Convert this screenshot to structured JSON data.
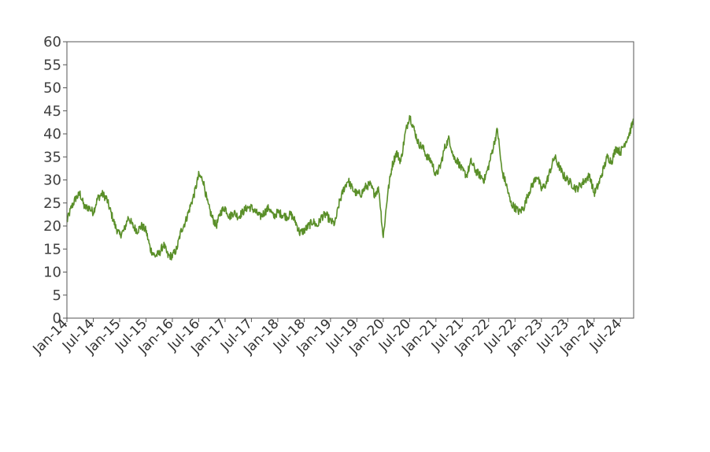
{
  "chart_data": {
    "type": "line",
    "title": "",
    "xlabel": "",
    "ylabel": "",
    "ylim": [
      0,
      60
    ],
    "yticks": [
      0,
      5,
      10,
      15,
      20,
      25,
      30,
      35,
      40,
      45,
      50,
      55,
      60
    ],
    "x_range": [
      "2014-01",
      "2024-10"
    ],
    "xtick_labels": [
      "Jan-14",
      "Jul-14",
      "Jan-15",
      "Jul-15",
      "Jan-16",
      "Jul-16",
      "Jan-17",
      "Jul-17",
      "Jan-18",
      "Jul-18",
      "Jan-19",
      "Jul-19",
      "Jan-20",
      "Jul-20",
      "Jan-21",
      "Jul-21",
      "Jan-22",
      "Jul-22",
      "Jan-23",
      "Jul-23",
      "Jan-24",
      "Jul-24"
    ],
    "grid": false,
    "line_color": "#5a8f29",
    "series": [
      {
        "x": [
          "2014-01",
          "2014-02",
          "2014-03",
          "2014-04",
          "2014-05",
          "2014-06",
          "2014-07",
          "2014-08",
          "2014-09",
          "2014-10",
          "2014-11",
          "2014-12",
          "2015-01",
          "2015-02",
          "2015-03",
          "2015-04",
          "2015-05",
          "2015-06",
          "2015-07",
          "2015-08",
          "2015-09",
          "2015-10",
          "2015-11",
          "2015-12",
          "2016-01",
          "2016-02",
          "2016-03",
          "2016-04",
          "2016-05",
          "2016-06",
          "2016-07",
          "2016-08",
          "2016-09",
          "2016-10",
          "2016-11",
          "2016-12",
          "2017-01",
          "2017-02",
          "2017-03",
          "2017-04",
          "2017-05",
          "2017-06",
          "2017-07",
          "2017-08",
          "2017-09",
          "2017-10",
          "2017-11",
          "2017-12",
          "2018-01",
          "2018-02",
          "2018-03",
          "2018-04",
          "2018-05",
          "2018-06",
          "2018-07",
          "2018-08",
          "2018-09",
          "2018-10",
          "2018-11",
          "2018-12",
          "2019-01",
          "2019-02",
          "2019-03",
          "2019-04",
          "2019-05",
          "2019-06",
          "2019-07",
          "2019-08",
          "2019-09",
          "2019-10",
          "2019-11",
          "2019-12",
          "2020-01",
          "2020-02",
          "2020-03",
          "2020-04",
          "2020-05",
          "2020-06",
          "2020-07",
          "2020-08",
          "2020-09",
          "2020-10",
          "2020-11",
          "2020-12",
          "2021-01",
          "2021-02",
          "2021-03",
          "2021-04",
          "2021-05",
          "2021-06",
          "2021-07",
          "2021-08",
          "2021-09",
          "2021-10",
          "2021-11",
          "2021-12",
          "2022-01",
          "2022-02",
          "2022-03",
          "2022-04",
          "2022-05",
          "2022-06",
          "2022-07",
          "2022-08",
          "2022-09",
          "2022-10",
          "2022-11",
          "2022-12",
          "2023-01",
          "2023-02",
          "2023-03",
          "2023-04",
          "2023-05",
          "2023-06",
          "2023-07",
          "2023-08",
          "2023-09",
          "2023-10",
          "2023-11",
          "2023-12",
          "2024-01",
          "2024-02",
          "2024-03",
          "2024-04",
          "2024-05",
          "2024-06",
          "2024-07",
          "2024-08",
          "2024-09",
          "2024-10"
        ],
        "values": [
          21,
          24,
          26,
          27,
          24,
          24,
          23,
          26,
          27,
          26,
          23,
          20,
          18,
          19,
          22,
          20,
          19,
          20,
          19,
          15,
          13.5,
          14,
          16,
          13.5,
          13.5,
          15,
          19,
          21,
          24,
          27,
          31,
          30,
          25,
          22,
          20,
          23,
          24,
          22,
          23,
          22,
          23,
          24,
          24,
          23,
          22,
          23,
          24,
          22,
          23,
          22.5,
          22,
          22.5,
          21,
          18.5,
          19,
          20,
          21,
          20,
          22,
          22.5,
          21,
          20.5,
          25,
          28,
          30,
          28,
          27,
          27,
          28.5,
          29,
          27,
          28,
          17.5,
          27,
          33,
          36,
          34,
          40,
          44,
          41,
          38,
          37,
          35,
          34,
          31,
          33,
          37,
          39,
          35,
          34,
          32,
          31,
          34,
          32,
          31,
          30,
          33,
          37,
          41,
          32,
          29,
          25,
          24,
          23,
          24,
          27,
          29,
          31,
          28,
          29,
          32,
          35,
          33,
          31,
          30,
          29,
          28,
          29,
          30,
          31,
          27,
          29,
          32,
          35,
          34,
          37,
          36,
          38,
          40,
          43
        ]
      }
    ]
  }
}
